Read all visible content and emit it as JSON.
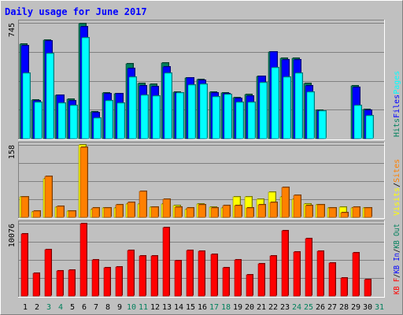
{
  "chart_data": {
    "type": "bar",
    "title": "Daily usage for June 2017",
    "categories": [
      "1",
      "2",
      "3",
      "4",
      "5",
      "6",
      "7",
      "8",
      "9",
      "10",
      "11",
      "12",
      "13",
      "14",
      "15",
      "16",
      "17",
      "18",
      "19",
      "20",
      "21",
      "22",
      "23",
      "24",
      "25",
      "26",
      "27",
      "28",
      "29",
      "30",
      "31"
    ],
    "weekend_days": [
      "3",
      "4",
      "10",
      "11",
      "17",
      "18",
      "24",
      "25",
      "31"
    ],
    "day_label_colors": {
      "weekday": "#000000",
      "weekend": "#00805c"
    },
    "panels": [
      {
        "id": "top",
        "ymax_label": "745",
        "ylim": [
          0,
          745
        ],
        "series": [
          {
            "name": "Hits",
            "color": "#00805c",
            "values": [
              610,
              247,
              635,
              280,
              255,
              740,
              170,
              295,
              290,
              480,
              355,
              350,
              485,
              300,
              390,
              380,
              297,
              295,
              265,
              282,
              400,
              560,
              515,
              515,
              355,
              180,
              0,
              0,
              340,
              185,
              0
            ]
          },
          {
            "name": "Files",
            "color": "#0000ff",
            "values": [
              598,
              243,
              627,
              280,
              245,
              720,
              165,
              290,
              287,
              453,
              340,
              335,
              460,
              295,
              390,
              375,
              294,
              290,
              256,
              275,
              400,
              555,
              505,
              505,
              340,
              175,
              0,
              0,
              330,
              180,
              0
            ]
          },
          {
            "name": "Pages",
            "color": "#00ffff",
            "values": [
              420,
              233,
              545,
              228,
              215,
              650,
              130,
              245,
              230,
              395,
              280,
              272,
              420,
              295,
              345,
              348,
              270,
              285,
              232,
              235,
              360,
              455,
              395,
              420,
              300,
              177,
              0,
              0,
              215,
              145,
              0
            ]
          }
        ],
        "legend": [
          {
            "text": "Hits",
            "color": "#00805c"
          },
          {
            "text": "Files",
            "color": "#0000ff"
          },
          {
            "text": "Pages",
            "color": "#00ffff"
          }
        ]
      },
      {
        "id": "middle",
        "ymax_label": "158",
        "ylim": [
          0,
          158
        ],
        "series": [
          {
            "name": "Visits",
            "color": "#ffff00",
            "values": [
              45,
              12,
              85,
              22,
              13,
              158,
              18,
              20,
              20,
              30,
              30,
              22,
              30,
              25,
              18,
              30,
              22,
              20,
              45,
              45,
              40,
              55,
              45,
              40,
              30,
              28,
              20,
              22,
              21,
              20,
              0
            ]
          },
          {
            "name": "Sites",
            "color": "#ff8000",
            "values": [
              45,
              14,
              90,
              24,
              14,
              152,
              20,
              20,
              27,
              33,
              57,
              23,
              40,
              22,
              20,
              27,
              21,
              25,
              25,
              21,
              27,
              33,
              65,
              48,
              25,
              28,
              20,
              10,
              23,
              21,
              0
            ]
          }
        ],
        "legend": [
          {
            "text": "Visits",
            "color": "#ffff00"
          },
          {
            "text": "/",
            "color": "#000000"
          },
          {
            "text": "Sites",
            "color": "#ff8000"
          }
        ]
      },
      {
        "id": "bottom",
        "ymax_label": "10076",
        "ylim": [
          0,
          10076
        ],
        "series": [
          {
            "name": "KBytes",
            "color": "#ff0000",
            "values": [
              8650,
              3200,
              6500,
              3500,
              3650,
              10076,
              5000,
              3900,
              4000,
              6300,
              5600,
              5600,
              9500,
              4950,
              6300,
              6200,
              5800,
              3900,
              5050,
              3000,
              4450,
              5600,
              9100,
              6100,
              7950,
              6200,
              4600,
              2550,
              6000,
              2350,
              0
            ]
          }
        ],
        "legend": [
          {
            "text": "KB F",
            "color": "#ff0000"
          },
          {
            "text": "/",
            "color": "#000000"
          },
          {
            "text": "KB In",
            "color": "#0000ff"
          },
          {
            "text": "/",
            "color": "#000000"
          },
          {
            "text": "KB Out",
            "color": "#00805c"
          }
        ]
      }
    ]
  }
}
